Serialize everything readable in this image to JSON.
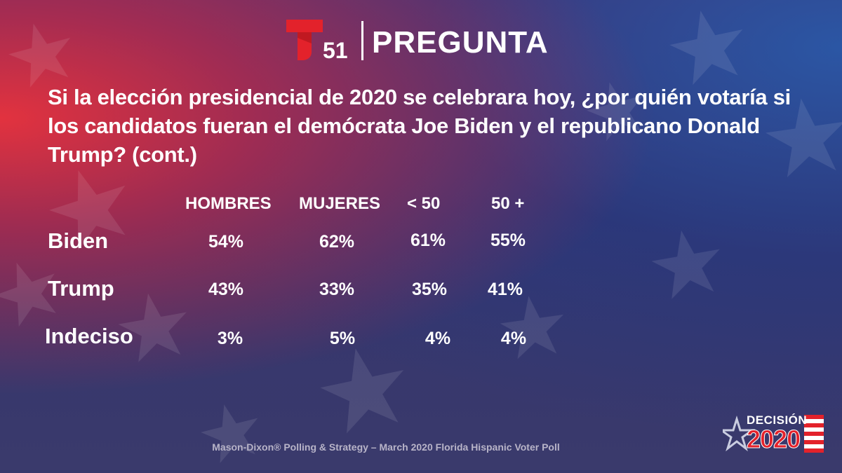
{
  "header": {
    "channel_number": "51",
    "title": "PREGUNTA"
  },
  "question": "Si la elección presidencial de 2020 se celebrara hoy, ¿por quién votaría si los candidatos fueran el demócrata Joe Biden y el republicano Donald Trump?  (cont.)",
  "table": {
    "columns": [
      "HOMBRES",
      "MUJERES",
      "< 50",
      "50 +"
    ],
    "rows": [
      {
        "label": "Biden",
        "values": [
          "54%",
          "62%",
          "61%",
          "55%"
        ]
      },
      {
        "label": "Trump",
        "values": [
          "43%",
          "33%",
          "35%",
          "41%"
        ]
      },
      {
        "label": "Indeciso",
        "values": [
          "3%",
          "5%",
          "4%",
          "4%"
        ]
      }
    ]
  },
  "source": "Mason-Dixon® Polling & Strategy – March 2020 Florida Hispanic Voter Poll",
  "badge": {
    "line1": "DECISIÓN",
    "line2": "2020"
  },
  "colors": {
    "brand_red": "#e3222b",
    "text": "#ffffff"
  }
}
